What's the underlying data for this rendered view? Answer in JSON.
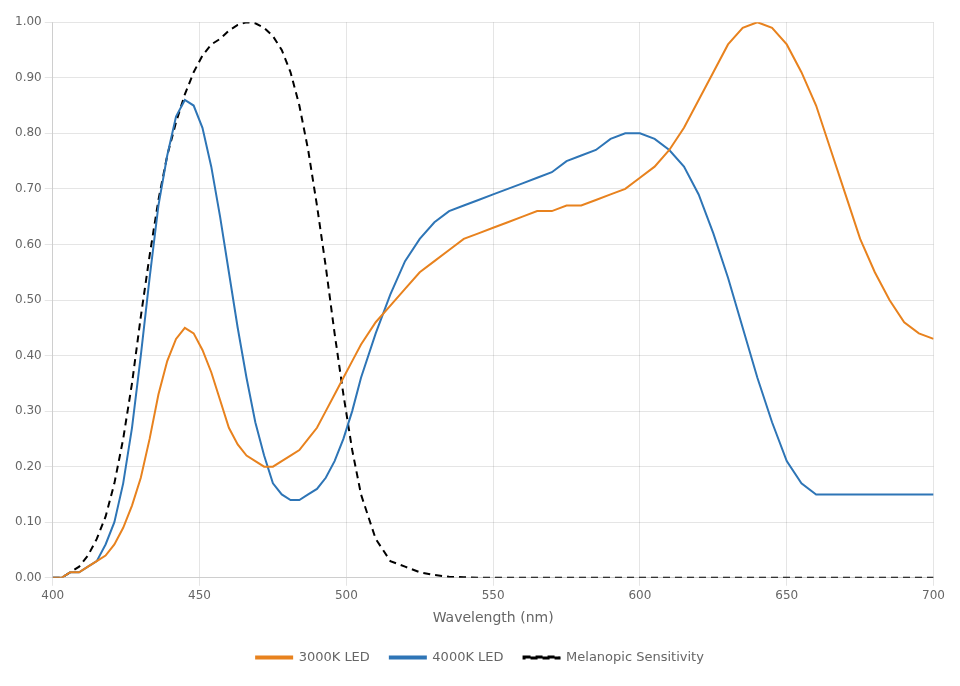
{
  "chart_data": {
    "type": "line",
    "xlabel": "Wavelength (nm)",
    "xlim": [
      400,
      700
    ],
    "ylim": [
      0.0,
      1.0
    ],
    "xticks": [
      400,
      450,
      500,
      550,
      600,
      650,
      700
    ],
    "yticks": [
      {
        "value": 0.0,
        "label": "0.00"
      },
      {
        "value": 0.1,
        "label": "0.10"
      },
      {
        "value": 0.2,
        "label": "0.20"
      },
      {
        "value": 0.3,
        "label": "0.30"
      },
      {
        "value": 0.4,
        "label": "0.40"
      },
      {
        "value": 0.5,
        "label": "0.50"
      },
      {
        "value": 0.6,
        "label": "0.60"
      },
      {
        "value": 0.7,
        "label": "0.70"
      },
      {
        "value": 0.8,
        "label": "0.80"
      },
      {
        "value": 0.9,
        "label": "0.90"
      },
      {
        "value": 1.0,
        "label": "1.00"
      }
    ],
    "grid": true,
    "legend": "bottom",
    "series": [
      {
        "name": "3000K LED",
        "color": "#E8821E",
        "line_style": "solid",
        "x": [
          400,
          403,
          406,
          409,
          412,
          415,
          418,
          421,
          424,
          427,
          430,
          433,
          436,
          439,
          442,
          445,
          448,
          451,
          454,
          457,
          460,
          463,
          466,
          469,
          472,
          475,
          478,
          481,
          484,
          487,
          490,
          493,
          496,
          499,
          502,
          505,
          510,
          515,
          520,
          525,
          530,
          535,
          540,
          545,
          550,
          555,
          560,
          565,
          570,
          575,
          580,
          585,
          590,
          595,
          600,
          605,
          610,
          615,
          620,
          625,
          630,
          635,
          640,
          645,
          650,
          655,
          660,
          665,
          670,
          675,
          680,
          685,
          690,
          695,
          700
        ],
        "values": [
          0.0,
          0.0,
          0.01,
          0.01,
          0.02,
          0.03,
          0.04,
          0.06,
          0.09,
          0.13,
          0.18,
          0.25,
          0.33,
          0.39,
          0.43,
          0.45,
          0.44,
          0.41,
          0.37,
          0.32,
          0.27,
          0.24,
          0.22,
          0.21,
          0.2,
          0.2,
          0.21,
          0.22,
          0.23,
          0.25,
          0.27,
          0.3,
          0.33,
          0.36,
          0.39,
          0.42,
          0.46,
          0.49,
          0.52,
          0.55,
          0.57,
          0.59,
          0.61,
          0.62,
          0.63,
          0.64,
          0.65,
          0.66,
          0.66,
          0.67,
          0.67,
          0.68,
          0.69,
          0.7,
          0.72,
          0.74,
          0.77,
          0.81,
          0.86,
          0.91,
          0.96,
          0.99,
          1.0,
          0.99,
          0.96,
          0.91,
          0.85,
          0.77,
          0.69,
          0.61,
          0.55,
          0.5,
          0.46,
          0.44,
          0.43
        ]
      },
      {
        "name": "4000K LED",
        "color": "#2E75B6",
        "line_style": "solid",
        "x": [
          400,
          403,
          406,
          409,
          412,
          415,
          418,
          421,
          424,
          427,
          430,
          433,
          436,
          439,
          442,
          445,
          448,
          451,
          454,
          457,
          460,
          463,
          466,
          469,
          472,
          475,
          478,
          481,
          484,
          487,
          490,
          493,
          496,
          499,
          502,
          505,
          510,
          515,
          520,
          525,
          530,
          535,
          540,
          545,
          550,
          555,
          560,
          565,
          570,
          575,
          580,
          585,
          590,
          595,
          600,
          605,
          610,
          615,
          620,
          625,
          630,
          635,
          640,
          645,
          650,
          655,
          660,
          665,
          670,
          675,
          680,
          685,
          690,
          695,
          700
        ],
        "values": [
          0.0,
          0.0,
          0.01,
          0.01,
          0.02,
          0.03,
          0.06,
          0.1,
          0.17,
          0.27,
          0.4,
          0.54,
          0.67,
          0.76,
          0.83,
          0.86,
          0.85,
          0.81,
          0.74,
          0.65,
          0.55,
          0.45,
          0.36,
          0.28,
          0.22,
          0.17,
          0.15,
          0.14,
          0.14,
          0.15,
          0.16,
          0.18,
          0.21,
          0.25,
          0.3,
          0.36,
          0.44,
          0.51,
          0.57,
          0.61,
          0.64,
          0.66,
          0.67,
          0.68,
          0.69,
          0.7,
          0.71,
          0.72,
          0.73,
          0.75,
          0.76,
          0.77,
          0.79,
          0.8,
          0.8,
          0.79,
          0.77,
          0.74,
          0.69,
          0.62,
          0.54,
          0.45,
          0.36,
          0.28,
          0.21,
          0.17,
          0.15,
          0.15,
          0.15,
          0.15,
          0.15,
          0.15,
          0.15,
          0.15,
          0.15
        ]
      },
      {
        "name": "Melanopic Sensitivity",
        "color": "#000000",
        "line_style": "dashed",
        "x": [
          400,
          403,
          406,
          409,
          412,
          415,
          418,
          421,
          424,
          427,
          430,
          433,
          436,
          439,
          442,
          445,
          448,
          451,
          454,
          457,
          460,
          463,
          466,
          469,
          472,
          475,
          478,
          481,
          484,
          487,
          490,
          493,
          496,
          499,
          502,
          505,
          510,
          515,
          520,
          525,
          530,
          535,
          540,
          545,
          550,
          555,
          560,
          565,
          570,
          575,
          580,
          585,
          590,
          595,
          600,
          620,
          640,
          660,
          680,
          700
        ],
        "values": [
          0.0,
          0.0,
          0.01,
          0.02,
          0.04,
          0.07,
          0.11,
          0.17,
          0.25,
          0.35,
          0.47,
          0.58,
          0.68,
          0.76,
          0.82,
          0.87,
          0.91,
          0.94,
          0.96,
          0.97,
          0.985,
          0.995,
          1.0,
          0.998,
          0.99,
          0.975,
          0.95,
          0.91,
          0.85,
          0.77,
          0.67,
          0.56,
          0.44,
          0.33,
          0.23,
          0.15,
          0.07,
          0.03,
          0.02,
          0.01,
          0.005,
          0.002,
          0.001,
          0.0,
          0.0,
          0.0,
          0.0,
          0.0,
          0.0,
          0.0,
          0.0,
          0.0,
          0.0,
          0.0,
          0.0,
          0.0,
          0.0,
          0.0,
          0.0,
          0.0
        ]
      }
    ]
  }
}
